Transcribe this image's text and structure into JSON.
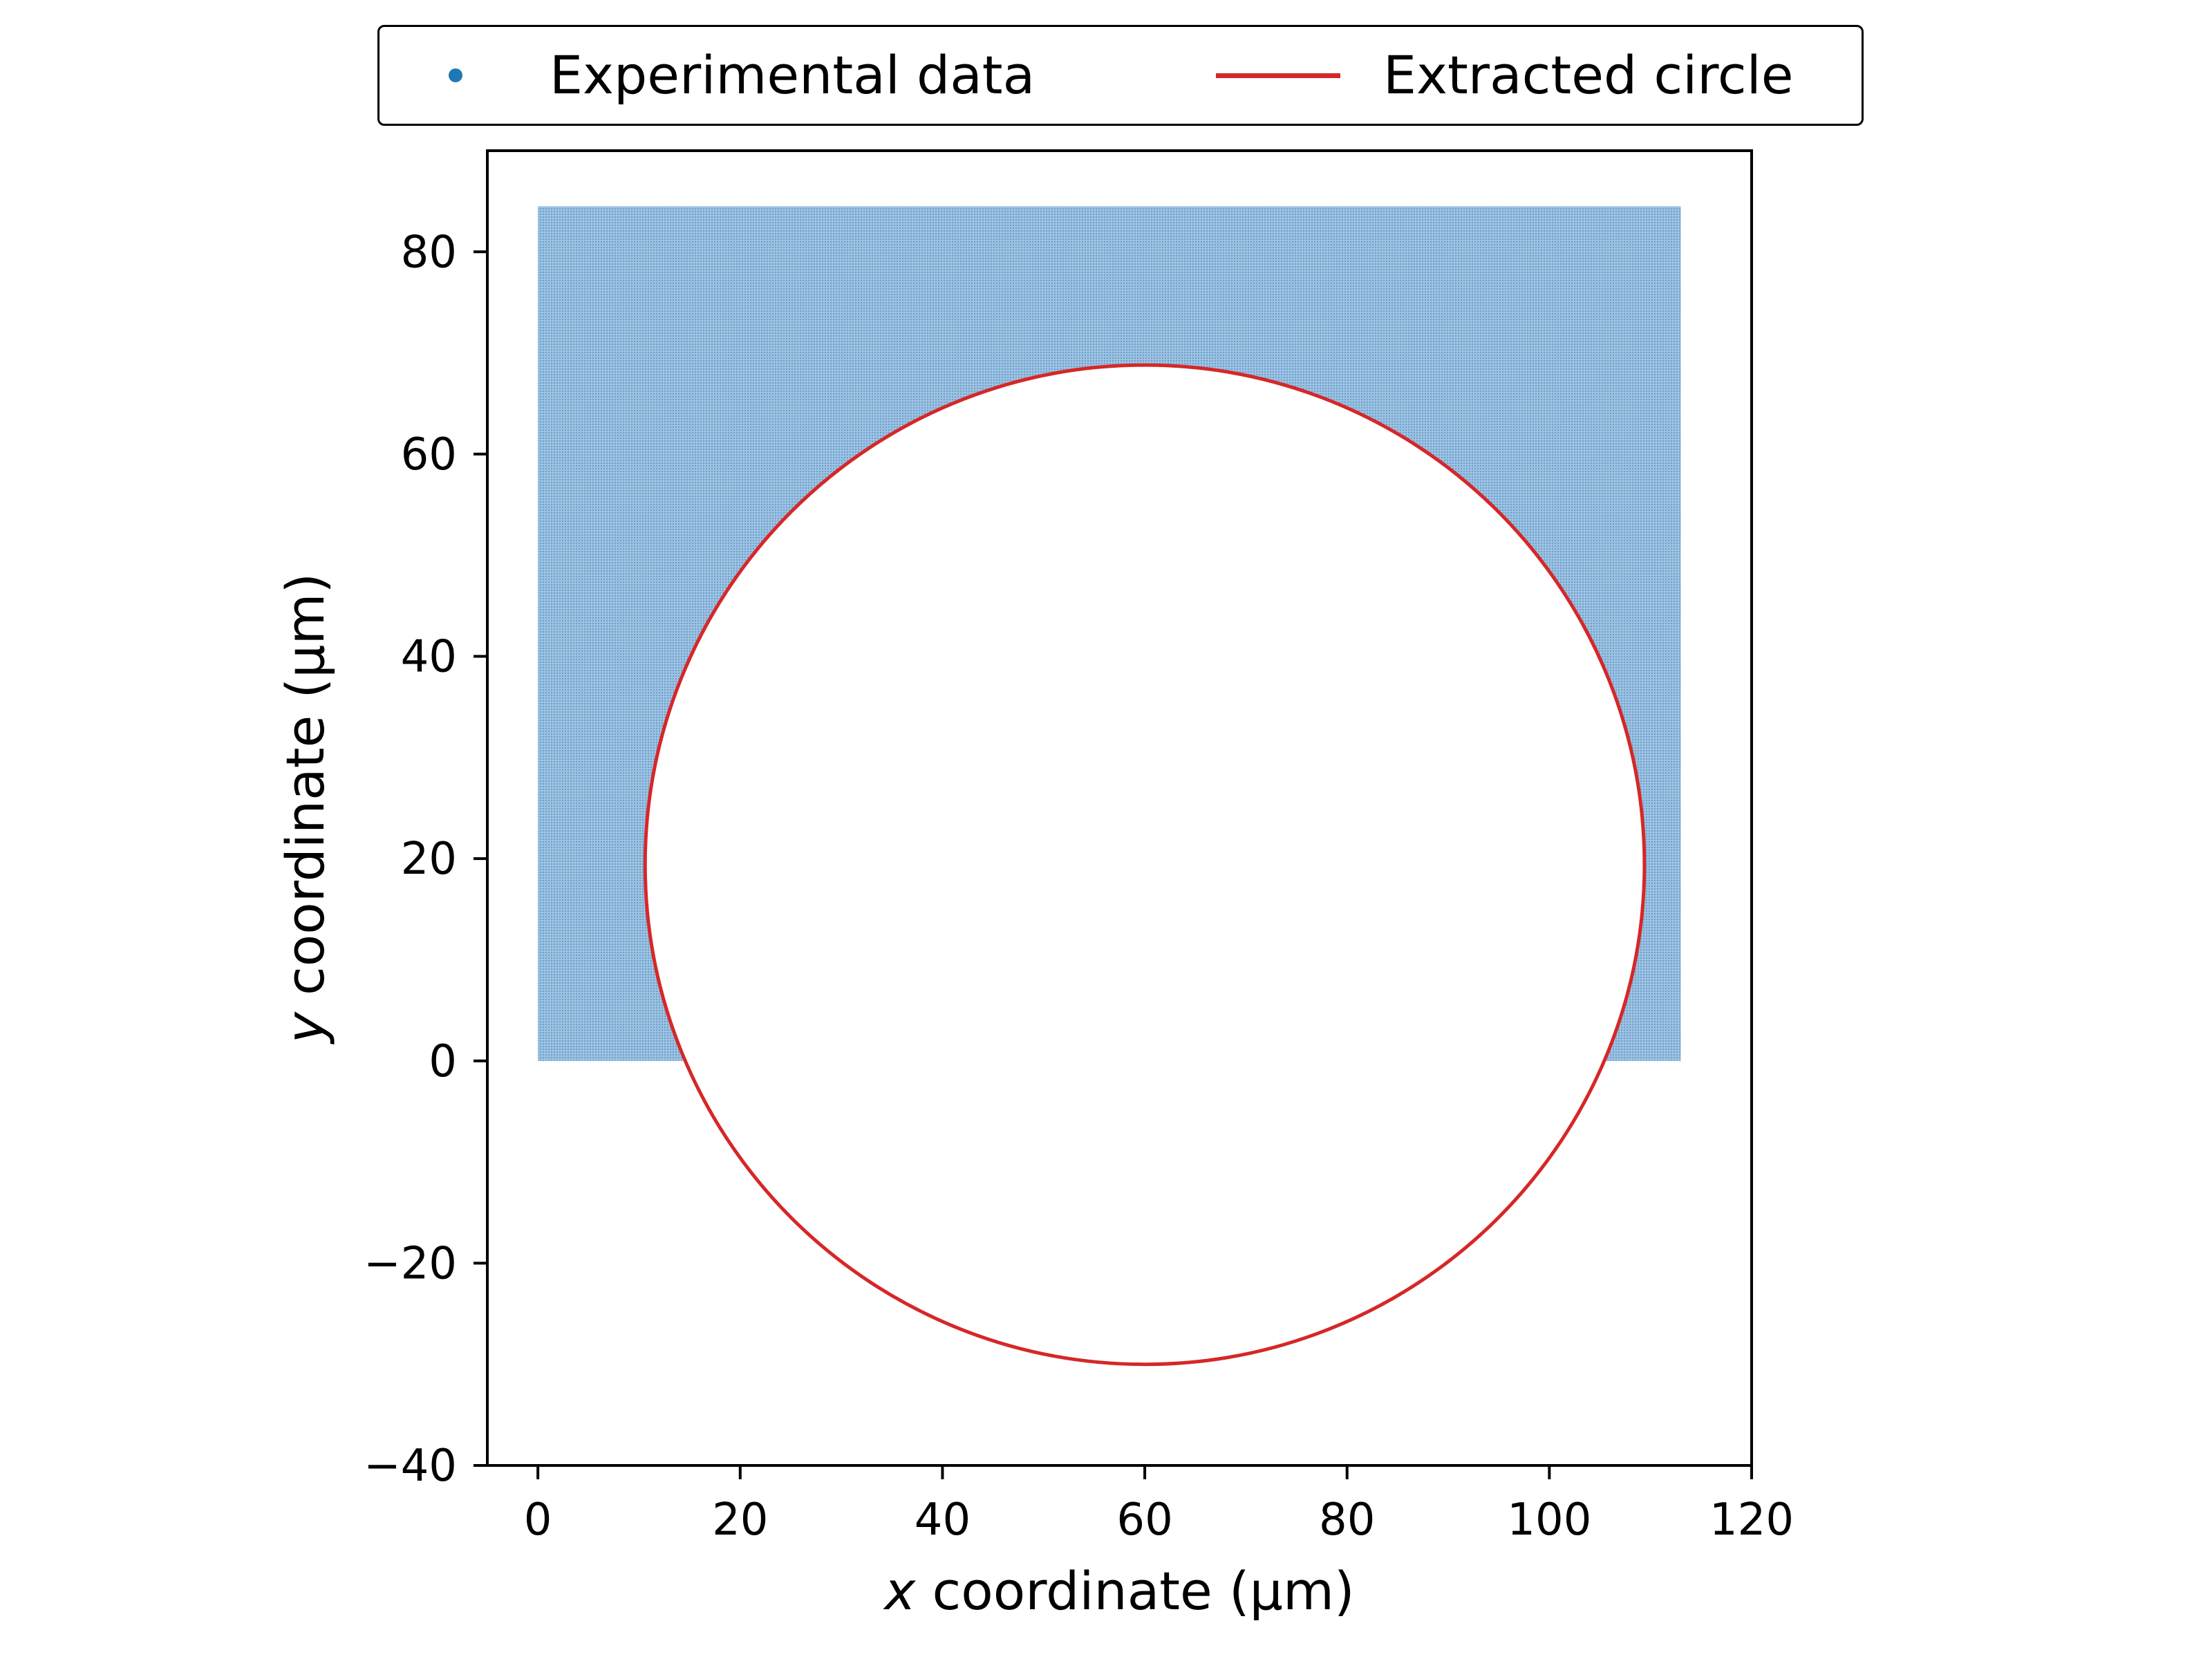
{
  "chart_data": {
    "type": "scatter",
    "title": "",
    "xlabel_var": "x",
    "xlabel_rest": " coordinate (µm)",
    "ylabel_var": "y",
    "ylabel_rest": " coordinate (µm)",
    "xlim": [
      -5,
      120
    ],
    "ylim": [
      -40,
      90
    ],
    "xticks": [
      0,
      20,
      40,
      60,
      80,
      100,
      120
    ],
    "xtick_labels": [
      "0",
      "20",
      "40",
      "60",
      "80",
      "100",
      "120"
    ],
    "yticks": [
      -40,
      -20,
      0,
      20,
      40,
      60,
      80
    ],
    "ytick_labels": [
      "−40",
      "−20",
      "0",
      "20",
      "40",
      "60",
      "80"
    ],
    "grid": false,
    "legend_position": "top-center-outside",
    "series": [
      {
        "name": "Experimental data",
        "kind": "scatter-region",
        "color": "#1f77b4",
        "x_range": [
          0,
          113
        ],
        "y_range": [
          0,
          84.5
        ],
        "excluded_circle": {
          "center": [
            60,
            19.4
          ],
          "radius": 49.4
        }
      },
      {
        "name": "Extracted circle",
        "kind": "circle",
        "color": "#d62728",
        "center": [
          60,
          19.4
        ],
        "radius": 49.4
      }
    ]
  }
}
